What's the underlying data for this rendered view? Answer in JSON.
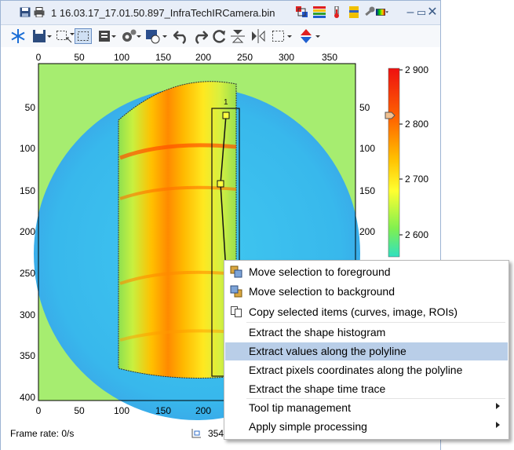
{
  "window": {
    "title": "1 16.03.17_17.01.50.897_InfraTechIRCamera.bin",
    "minimize_label": "–",
    "restore_label": "▭",
    "close_label": "✕"
  },
  "toolbar": {
    "tools": [
      "freeze-icon",
      "save-icon",
      "select-rect-icon",
      "select-all-icon",
      "layout-icon",
      "settings-icon",
      "roi-icon",
      "undo-icon",
      "redo-icon",
      "refresh-icon",
      "flip-vertical-icon",
      "flip-horizontal-icon",
      "crop-icon",
      "color-marker-icon"
    ]
  },
  "plot": {
    "x_ticks": [
      "0",
      "50",
      "100",
      "150",
      "200",
      "250",
      "300",
      "350"
    ],
    "y_ticks": [
      "50",
      "100",
      "150",
      "200",
      "250",
      "300",
      "350",
      "400"
    ],
    "roi_label": "1"
  },
  "colorbar": {
    "tick_labels": [
      "2 900",
      "2 800",
      "2 700",
      "2 600"
    ],
    "colors": [
      "#ff0000",
      "#ff8800",
      "#ffe000",
      "#80ff40",
      "#00e0e0"
    ]
  },
  "status": {
    "frame_rate": "Frame rate: 0/s",
    "coords": "354,"
  },
  "context_menu": {
    "items": [
      {
        "label": "Move selection to foreground",
        "icon": "bring-to-front-icon"
      },
      {
        "label": "Move selection to background",
        "icon": "send-to-back-icon"
      },
      {
        "label": "Copy selected items (curves, image, ROIs)",
        "icon": "copy-icon"
      },
      {
        "label": "Extract the shape histogram"
      },
      {
        "label": "Extract values along the polyline",
        "highlighted": true
      },
      {
        "label": "Extract pixels coordinates along the polyline"
      },
      {
        "label": "Extract the shape time trace"
      },
      {
        "label": "Tool tip management",
        "submenu": true
      },
      {
        "label": "Apply simple processing",
        "submenu": true
      }
    ]
  }
}
